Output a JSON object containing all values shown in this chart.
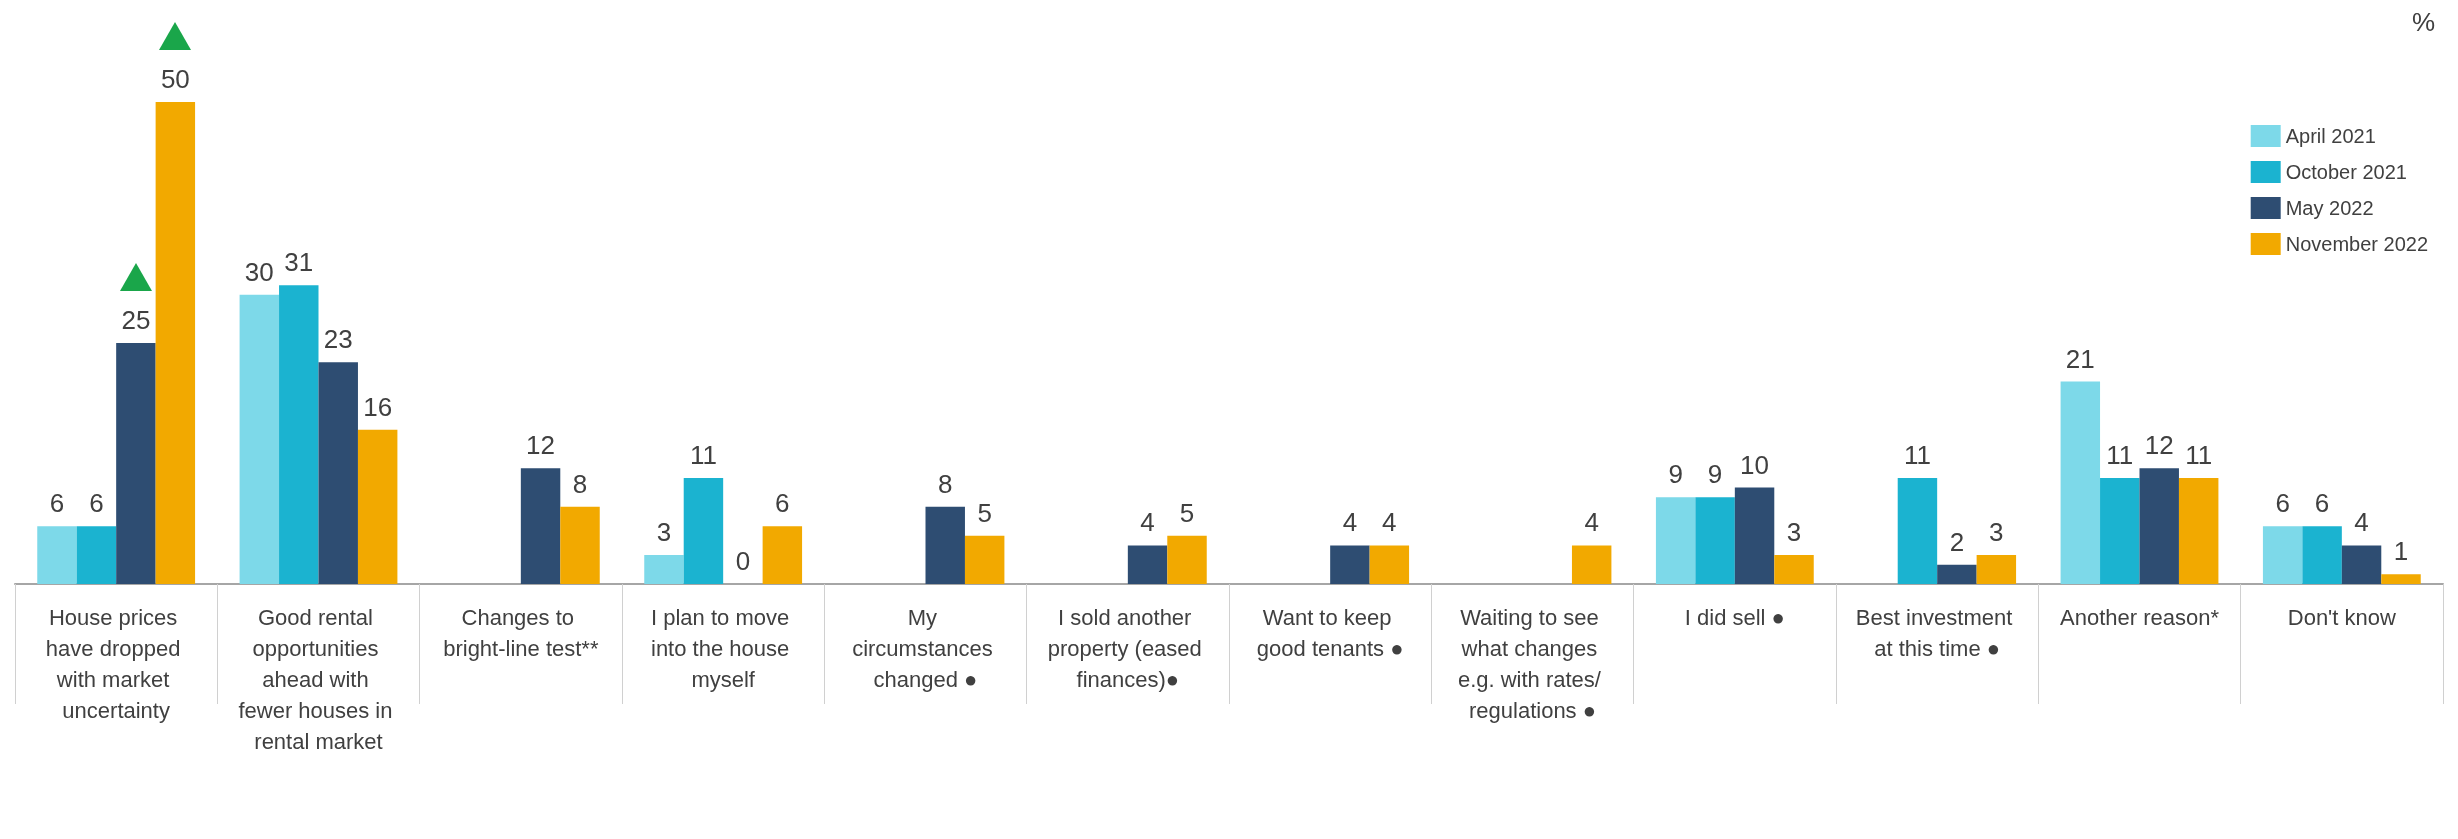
{
  "chart_data": {
    "type": "bar",
    "ylabel": "%",
    "categories": [
      "House prices have dropped with market uncertainty",
      "Good rental opportunities ahead with fewer houses in rental market",
      "Changes to bright-line test**",
      "I plan to move into the house myself",
      "My circumstances changed ●",
      "I sold another property (eased finances)●",
      "Want to keep good tenants ●",
      "Waiting to see what changes e.g. with rates/ regulations ●",
      "I did sell ●",
      "Best investment at this time ●",
      "Another reason*",
      "Don't know"
    ],
    "series": [
      {
        "name": "April 2021",
        "color": "#7dd9e9",
        "values": [
          6,
          30,
          null,
          3,
          null,
          null,
          null,
          null,
          9,
          null,
          21,
          6
        ]
      },
      {
        "name": "October 2021",
        "color": "#1bb3d0",
        "values": [
          6,
          31,
          null,
          11,
          null,
          null,
          null,
          null,
          9,
          11,
          11,
          6
        ]
      },
      {
        "name": "May 2022",
        "color": "#2e4d72",
        "values": [
          25,
          23,
          12,
          0,
          8,
          4,
          4,
          null,
          10,
          2,
          12,
          4
        ]
      },
      {
        "name": "November 2022",
        "color": "#f2a900",
        "values": [
          50,
          16,
          8,
          6,
          5,
          5,
          4,
          4,
          3,
          3,
          11,
          1
        ]
      }
    ],
    "data_labels": true,
    "legend": "top right"
  }
}
